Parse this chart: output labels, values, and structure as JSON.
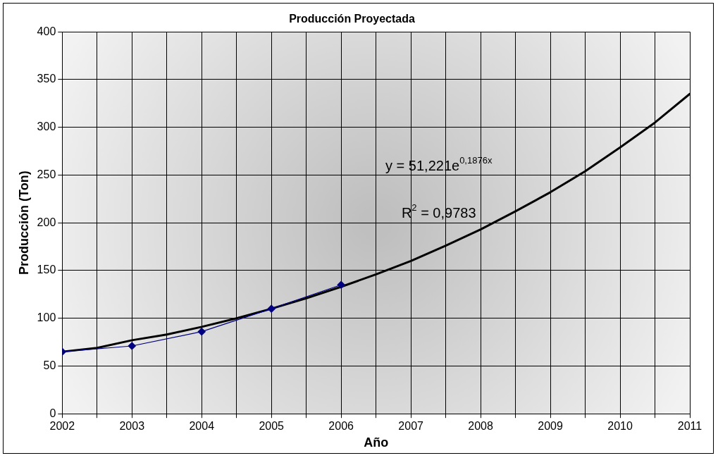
{
  "chart_data": {
    "type": "line",
    "title": "Producción Proyectada",
    "xlabel": "Año",
    "ylabel": "Producción (Ton)",
    "series": [
      {
        "color": "#000080",
        "marker": "diamond",
        "x": [
          2002,
          2003,
          2004,
          2005,
          2006
        ],
        "values": [
          65,
          71,
          86,
          110,
          135
        ]
      },
      {
        "type": "line",
        "color": "#000000",
        "marker": "none",
        "x": [
          2002,
          2002.5,
          2003,
          2003.5,
          2004,
          2004.5,
          2005,
          2005.5,
          2006,
          2006.5,
          2007,
          2007.5,
          2008,
          2008.5,
          2009,
          2009.5,
          2010,
          2010.5,
          2011
        ],
        "values": [
          65,
          69,
          77,
          83,
          91,
          100,
          110,
          121,
          133,
          146,
          160,
          176,
          193,
          212,
          232,
          254,
          279,
          305,
          335
        ]
      }
    ],
    "xlim": [
      2002,
      2011
    ],
    "xticks": [
      2002,
      {
        "value": 2002.5,
        "label": null
      },
      2003,
      {
        "value": 2003.5,
        "label": null
      },
      2004,
      {
        "value": 2004.5,
        "label": null
      },
      2005,
      {
        "value": 2005.5,
        "label": null
      },
      2006,
      {
        "value": 2006.5,
        "label": null
      },
      2007,
      {
        "value": 2007.5,
        "label": null
      },
      2008,
      {
        "value": 2008.5,
        "label": null
      },
      2009,
      {
        "value": 2009.5,
        "label": null
      },
      2010,
      {
        "value": 2010.5,
        "label": null
      },
      2011
    ],
    "ylim": [
      0,
      400
    ],
    "yticks": [
      0,
      50,
      100,
      150,
      200,
      250,
      300,
      350,
      400
    ],
    "grid": true,
    "annotations": [
      "y = 51,221e$^{0,1876x}$",
      "R$^{2}$ = 0,9783"
    ]
  }
}
